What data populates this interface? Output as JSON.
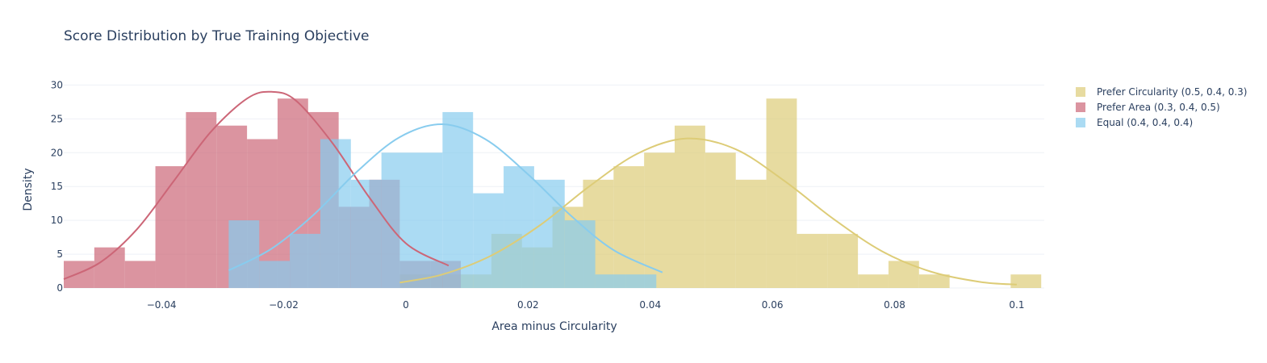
{
  "chart_data": {
    "type": "bar",
    "title": "Score Distribution by True Training Objective",
    "xlabel": "Area minus Circularity",
    "ylabel": "Density",
    "xlim": [
      -0.056,
      0.1045
    ],
    "ylim": [
      0,
      31
    ],
    "bin_width": 0.005,
    "x_ticks": [
      -0.04,
      -0.02,
      0,
      0.02,
      0.04,
      0.06,
      0.08,
      0.1
    ],
    "x_tick_labels": [
      "−0.04",
      "−0.02",
      "0",
      "0.02",
      "0.04",
      "0.06",
      "0.08",
      "0.1"
    ],
    "y_ticks": [
      0,
      5,
      10,
      15,
      20,
      25,
      30
    ],
    "y_tick_labels": [
      "0",
      "5",
      "10",
      "15",
      "20",
      "25",
      "30"
    ],
    "grid": true,
    "legend_position": "right",
    "series": [
      {
        "name": "Prefer Circularity (0.5, 0.4, 0.3)",
        "color": "#DDCC77",
        "bin_starts": [
          -0.001,
          0.004,
          0.009,
          0.014,
          0.019,
          0.024,
          0.029,
          0.034,
          0.039,
          0.044,
          0.049,
          0.054,
          0.059,
          0.064,
          0.069,
          0.074,
          0.079,
          0.084,
          0.089,
          0.094,
          0.099
        ],
        "values": [
          2,
          2,
          2,
          8,
          6,
          12,
          16,
          18,
          20,
          24,
          20,
          16,
          28,
          8,
          8,
          2,
          4,
          2,
          0,
          0,
          2
        ],
        "kde": {
          "x": [
            -0.001,
            0.006,
            0.014,
            0.022,
            0.03,
            0.038,
            0.046,
            0.054,
            0.062,
            0.07,
            0.078,
            0.086,
            0.094,
            0.1
          ],
          "y": [
            0.8,
            2.0,
            4.8,
            9.3,
            15.0,
            19.9,
            22.1,
            20.5,
            15.8,
            10.2,
            5.4,
            2.4,
            0.9,
            0.5
          ]
        }
      },
      {
        "name": "Prefer Area (0.3, 0.4, 0.5)",
        "color": "#CC6677",
        "bin_starts": [
          -0.056,
          -0.051,
          -0.046,
          -0.041,
          -0.036,
          -0.031,
          -0.026,
          -0.021,
          -0.016,
          -0.011,
          -0.006,
          -0.001,
          0.004
        ],
        "values": [
          4,
          6,
          4,
          18,
          26,
          24,
          22,
          28,
          26,
          12,
          16,
          4,
          4
        ],
        "kde": {
          "x": [
            -0.056,
            -0.05,
            -0.044,
            -0.038,
            -0.032,
            -0.026,
            -0.022,
            -0.018,
            -0.012,
            -0.006,
            0,
            0.007
          ],
          "y": [
            1.3,
            3.8,
            8.7,
            15.8,
            23.0,
            28.0,
            29.0,
            27.7,
            21.4,
            13.4,
            6.6,
            3.3
          ]
        }
      },
      {
        "name": "Equal (0.4, 0.4, 0.4)",
        "color": "#88CCEE",
        "bin_starts": [
          -0.029,
          -0.024,
          -0.019,
          -0.014,
          -0.009,
          -0.004,
          0.001,
          0.006,
          0.011,
          0.016,
          0.021,
          0.026,
          0.031,
          0.036
        ],
        "values": [
          10,
          4,
          8,
          22,
          16,
          20,
          20,
          26,
          14,
          18,
          16,
          10,
          2,
          2
        ],
        "kde": {
          "x": [
            -0.029,
            -0.022,
            -0.015,
            -0.008,
            -0.001,
            0.006,
            0.013,
            0.02,
            0.027,
            0.034,
            0.042
          ],
          "y": [
            2.6,
            5.8,
            10.9,
            17.2,
            22.3,
            24.2,
            22.0,
            16.8,
            10.7,
            5.6,
            2.3
          ]
        }
      }
    ]
  }
}
